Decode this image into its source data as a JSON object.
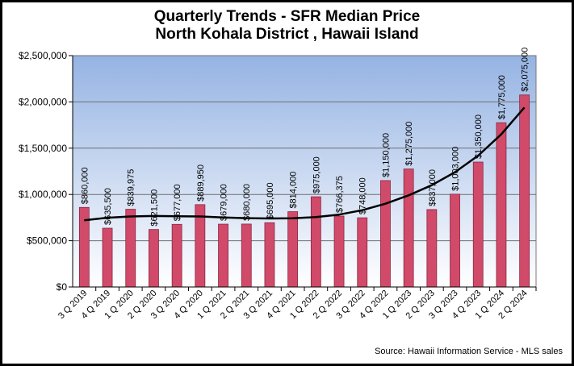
{
  "chart_data": {
    "type": "bar",
    "title": "Quarterly Trends - SFR Median Price",
    "subtitle": "North Kohala District , Hawaii Island",
    "xlabel": "",
    "ylabel": "",
    "ylim": [
      0,
      2500000
    ],
    "yticks": [
      0,
      500000,
      1000000,
      1500000,
      2000000,
      2500000
    ],
    "ytick_labels": [
      "$0",
      "$500,000",
      "$1,000,000",
      "$1,500,000",
      "$2,000,000",
      "$2,500,000"
    ],
    "categories": [
      "3 Q 2019",
      "4 Q 2019",
      "1 Q 2020",
      "2 Q 2020",
      "3 Q 2020",
      "4 Q 2020",
      "1 Q 2021",
      "2 Q 2021",
      "3 Q 2021",
      "4 Q 2021",
      "1 Q 2022",
      "2 Q 2022",
      "3 Q 2022",
      "4 Q 2022",
      "1 Q 2023",
      "2 Q 2023",
      "3 Q 2023",
      "4 Q 2023",
      "1 Q 2024",
      "2 Q 2024"
    ],
    "values": [
      860000,
      635500,
      839975,
      621500,
      677000,
      889950,
      679000,
      680000,
      695000,
      814000,
      975000,
      766375,
      748000,
      1150000,
      1275000,
      837000,
      1003000,
      1350000,
      1775000,
      2075000
    ],
    "data_labels": [
      "$860,000",
      "$635,500",
      "$839,975",
      "$621,500",
      "$677,000",
      "$889,950",
      "$679,000",
      "$680,000",
      "$695,000",
      "$814,000",
      "$975,000",
      "$766,375",
      "$748,000",
      "$1,150,000",
      "$1,275,000",
      "$837,000",
      "$1,003,000",
      "$1,350,000",
      "$1,775,000",
      "$2,075,000"
    ],
    "trendline": [
      720000,
      748000,
      762000,
      767000,
      765000,
      762000,
      752000,
      744000,
      740000,
      742000,
      755000,
      782000,
      830000,
      900000,
      990000,
      1100000,
      1240000,
      1420000,
      1650000,
      1940000
    ],
    "colors": {
      "bar": "#d14a6a",
      "bar_edge": "#8a2540",
      "plot_top": "#95b3e3",
      "plot_bottom": "#ffffff",
      "trend": "#000000",
      "grid": "#6f6f6f"
    },
    "grid": true,
    "legend": "none"
  },
  "source": "Source:  Hawaii Information Service - MLS sales"
}
